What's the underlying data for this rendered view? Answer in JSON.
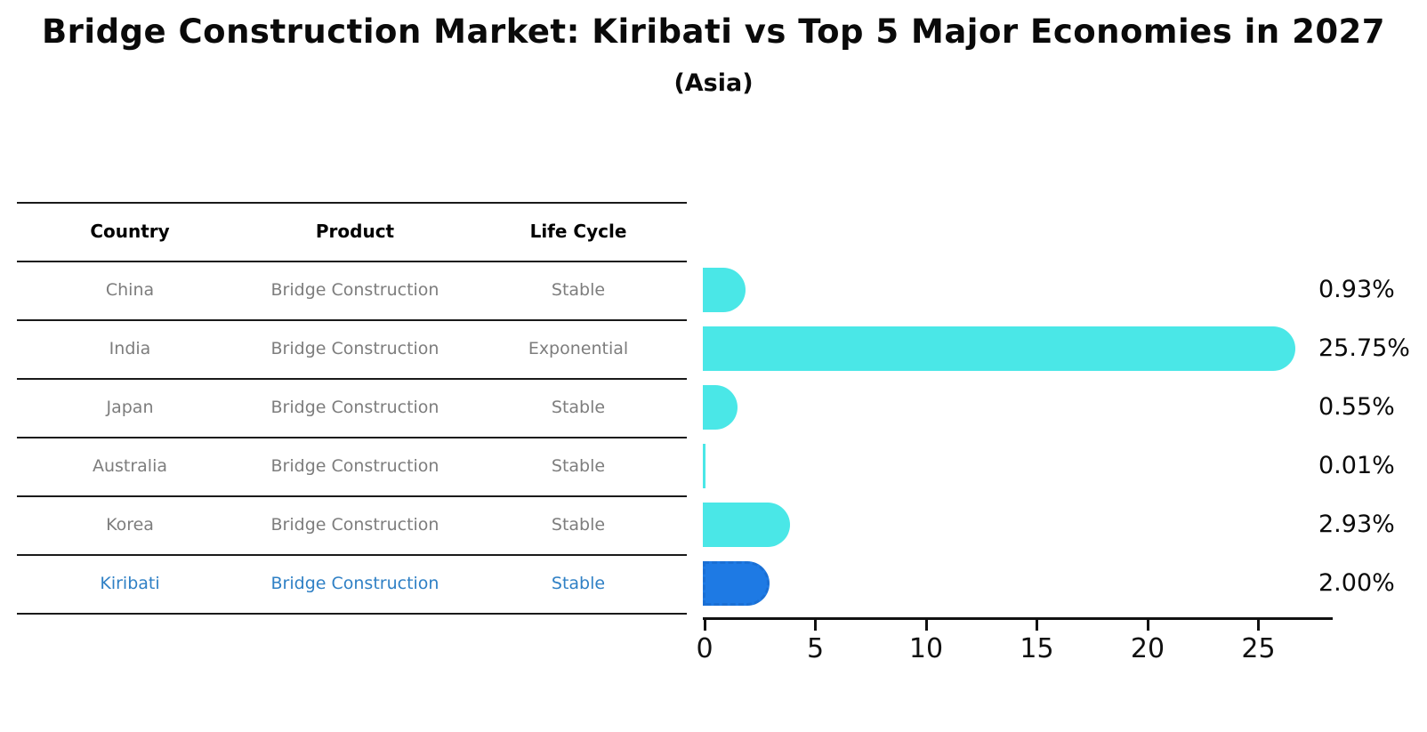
{
  "title": "Bridge Construction Market: Kiribati vs Top 5 Major Economies in 2027",
  "subtitle": "(Asia)",
  "table": {
    "headers": [
      "Country",
      "Product",
      "Life Cycle"
    ],
    "rows": [
      {
        "country": "China",
        "product": "Bridge Construction",
        "life_cycle": "Stable",
        "highlight": false
      },
      {
        "country": "India",
        "product": "Bridge Construction",
        "life_cycle": "Exponential",
        "highlight": false
      },
      {
        "country": "Japan",
        "product": "Bridge Construction",
        "life_cycle": "Stable",
        "highlight": false
      },
      {
        "country": "Australia",
        "product": "Bridge Construction",
        "life_cycle": "Stable",
        "highlight": false
      },
      {
        "country": "Korea",
        "product": "Bridge Construction",
        "life_cycle": "Stable",
        "highlight": false
      },
      {
        "country": "Kiribati",
        "product": "Bridge Construction",
        "life_cycle": "Stable",
        "highlight": true
      }
    ]
  },
  "chart_data": {
    "type": "bar",
    "orientation": "horizontal",
    "title": "Bridge Construction Market: Kiribati vs Top 5 Major Economies in 2027",
    "subtitle": "(Asia)",
    "categories": [
      "China",
      "India",
      "Japan",
      "Australia",
      "Korea",
      "Kiribati"
    ],
    "values": [
      0.93,
      25.75,
      0.55,
      0.01,
      2.93,
      2.0
    ],
    "value_labels": [
      "0.93%",
      "25.75%",
      "0.55%",
      "0.01%",
      "2.93%",
      "2.00%"
    ],
    "x_ticks": [
      "0",
      "5",
      "10",
      "15",
      "20",
      "25"
    ],
    "xlabel": "",
    "ylabel": "",
    "xlim": [
      0,
      28.4
    ],
    "grid": false,
    "legend": false,
    "bar_color": "#4AE7E7",
    "highlight_color": "#1E7AE4",
    "highlight_index": 5,
    "highlight_style": "dashed-border"
  },
  "colors": {
    "background": "#FFFFFF",
    "bar_turquoise": "#4AE7E7",
    "bar_highlight_blue": "#1E7AE4",
    "table_text_gray": "#7D7D7D",
    "table_highlight_blue": "#2F80C5",
    "text_black": "#0A0A0A"
  }
}
